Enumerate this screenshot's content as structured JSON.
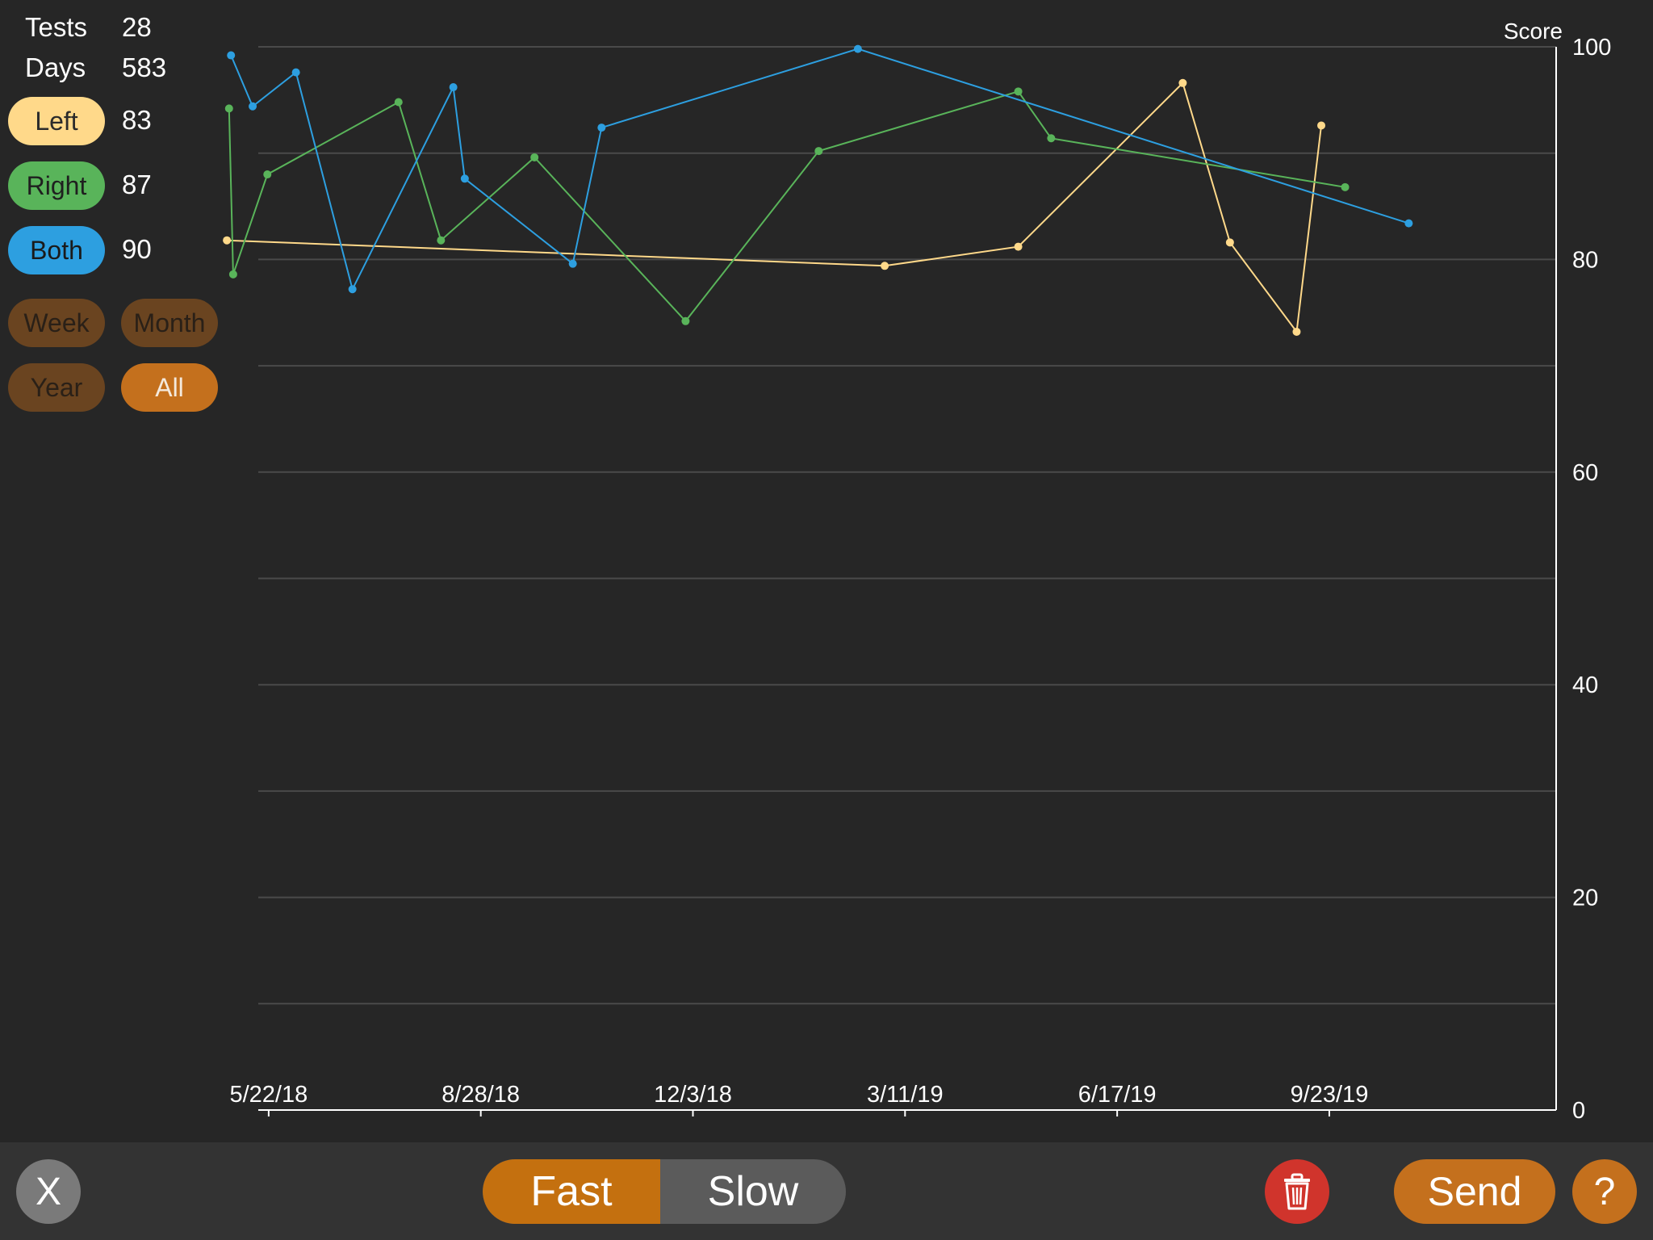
{
  "stats": {
    "tests_label": "Tests",
    "tests_value": "28",
    "days_label": "Days",
    "days_value": "583"
  },
  "ears": [
    {
      "label": "Left",
      "value": "83",
      "color": "#ffd98a"
    },
    {
      "label": "Right",
      "value": "87",
      "color": "#59b45a"
    },
    {
      "label": "Both",
      "value": "90",
      "color": "#2d9fe0"
    }
  ],
  "ranges": [
    {
      "label": "Week",
      "active": false
    },
    {
      "label": "Month",
      "active": false
    },
    {
      "label": "Year",
      "active": false
    },
    {
      "label": "All",
      "active": true
    }
  ],
  "toolbar": {
    "close_label": "X",
    "fast_label": "Fast",
    "slow_label": "Slow",
    "send_label": "Send",
    "help_label": "?",
    "trash_icon": "trash-icon"
  },
  "chart_data": {
    "type": "line",
    "title": "",
    "ylabel": "Score",
    "xlabel": "",
    "ylim": [
      0,
      100
    ],
    "xlim": [
      -4.8,
      594.8
    ],
    "grid": true,
    "y_ticks": [
      0,
      20,
      40,
      60,
      80,
      100
    ],
    "x_tick_labels": [
      "5/22/18",
      "8/28/18",
      "12/3/18",
      "3/11/19",
      "6/17/19",
      "9/23/19"
    ],
    "x_tick_values": [
      0,
      98,
      196,
      294,
      392,
      490
    ],
    "series": [
      {
        "name": "Left",
        "color": "#ffd98a",
        "x": [
          -19.3,
          284.6,
          346.3,
          422.3,
          444.1,
          474.9,
          486.3
        ],
        "y": [
          81.8,
          79.4,
          81.2,
          96.6,
          81.6,
          73.2,
          92.6
        ]
      },
      {
        "name": "Right",
        "color": "#59b45a",
        "x": [
          -18.3,
          -16.4,
          -0.6,
          60.0,
          79.6,
          122.8,
          192.6,
          254.1,
          346.3,
          361.5,
          497.3
        ],
        "y": [
          94.2,
          78.6,
          88.0,
          94.8,
          81.8,
          89.6,
          74.2,
          90.2,
          95.8,
          91.4,
          86.8
        ]
      },
      {
        "name": "Both",
        "color": "#2d9fe0",
        "x": [
          -17.4,
          -7.4,
          12.6,
          38.7,
          85.3,
          90.6,
          140.5,
          153.8,
          272.2,
          526.7
        ],
        "y": [
          99.2,
          94.4,
          97.6,
          77.2,
          96.2,
          87.6,
          79.6,
          92.4,
          99.8,
          83.4
        ]
      }
    ]
  }
}
